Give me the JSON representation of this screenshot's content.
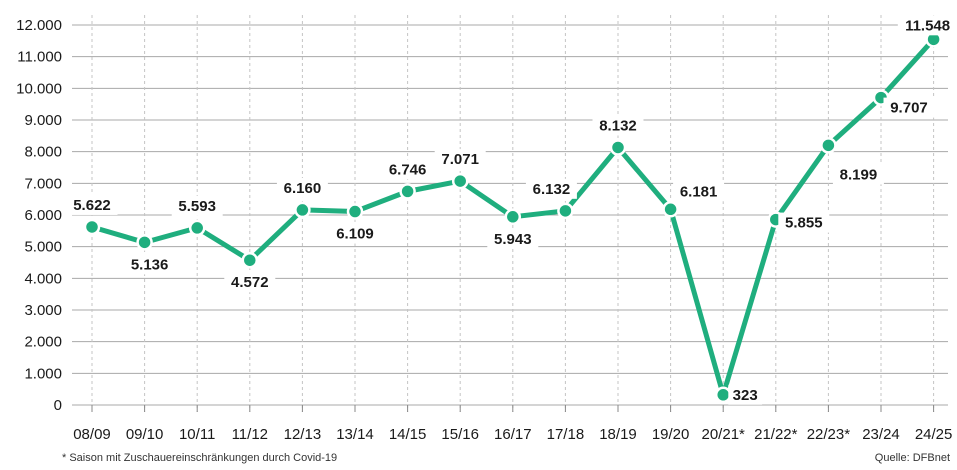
{
  "chart_data": {
    "type": "line",
    "categories": [
      "08/09",
      "09/10",
      "10/11",
      "11/12",
      "12/13",
      "13/14",
      "14/15",
      "15/16",
      "16/17",
      "17/18",
      "18/19",
      "19/20",
      "20/21*",
      "21/22*",
      "22/23*",
      "23/24",
      "24/25"
    ],
    "values": [
      5622,
      5136,
      5593,
      4572,
      6160,
      6109,
      6746,
      7071,
      5943,
      6132,
      8132,
      6181,
      323,
      5855,
      8199,
      9707,
      11548
    ],
    "value_labels": [
      "5.622",
      "5.136",
      "5.593",
      "4.572",
      "6.160",
      "6.109",
      "6.746",
      "7.071",
      "5.943",
      "6.132",
      "8.132",
      "6.181",
      "323",
      "5.855",
      "8.199",
      "9.707",
      "11.548"
    ],
    "yticks": [
      0,
      1000,
      2000,
      3000,
      4000,
      5000,
      6000,
      7000,
      8000,
      9000,
      10000,
      11000,
      12000
    ],
    "ytick_labels": [
      "0",
      "1.000",
      "2.000",
      "3.000",
      "4.000",
      "5.000",
      "6.000",
      "7.000",
      "8.000",
      "9.000",
      "10.000",
      "11.000",
      "12.000"
    ],
    "ylim": [
      0,
      12000
    ],
    "grid": "vertical dashed",
    "line_color": "#1fae7e",
    "footnote": "* Saison mit Zuschauereinschränkungen durch Covid-19",
    "source": "Quelle: DFBnet"
  }
}
